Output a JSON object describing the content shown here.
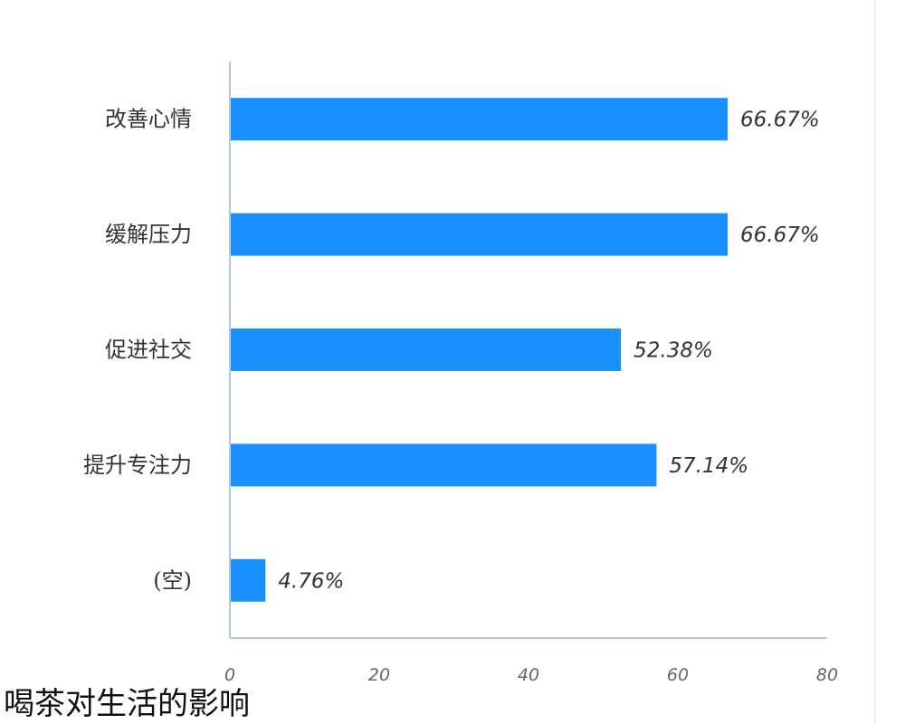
{
  "chart_data": {
    "type": "bar",
    "orientation": "horizontal",
    "title": "喝茶对生活的影响",
    "categories": [
      "改善心情",
      "缓解压力",
      "促进社交",
      "提升专注力",
      "(空)"
    ],
    "values": [
      66.67,
      66.67,
      52.38,
      57.14,
      4.76
    ],
    "data_labels": [
      "66.67%",
      "66.67%",
      "52.38%",
      "57.14%",
      "4.76%"
    ],
    "x_ticks": [
      "0",
      "20",
      "40",
      "60",
      "80"
    ],
    "xlim": [
      0,
      80
    ],
    "bar_color": "#1890ff",
    "grid": false,
    "legend": "none"
  }
}
